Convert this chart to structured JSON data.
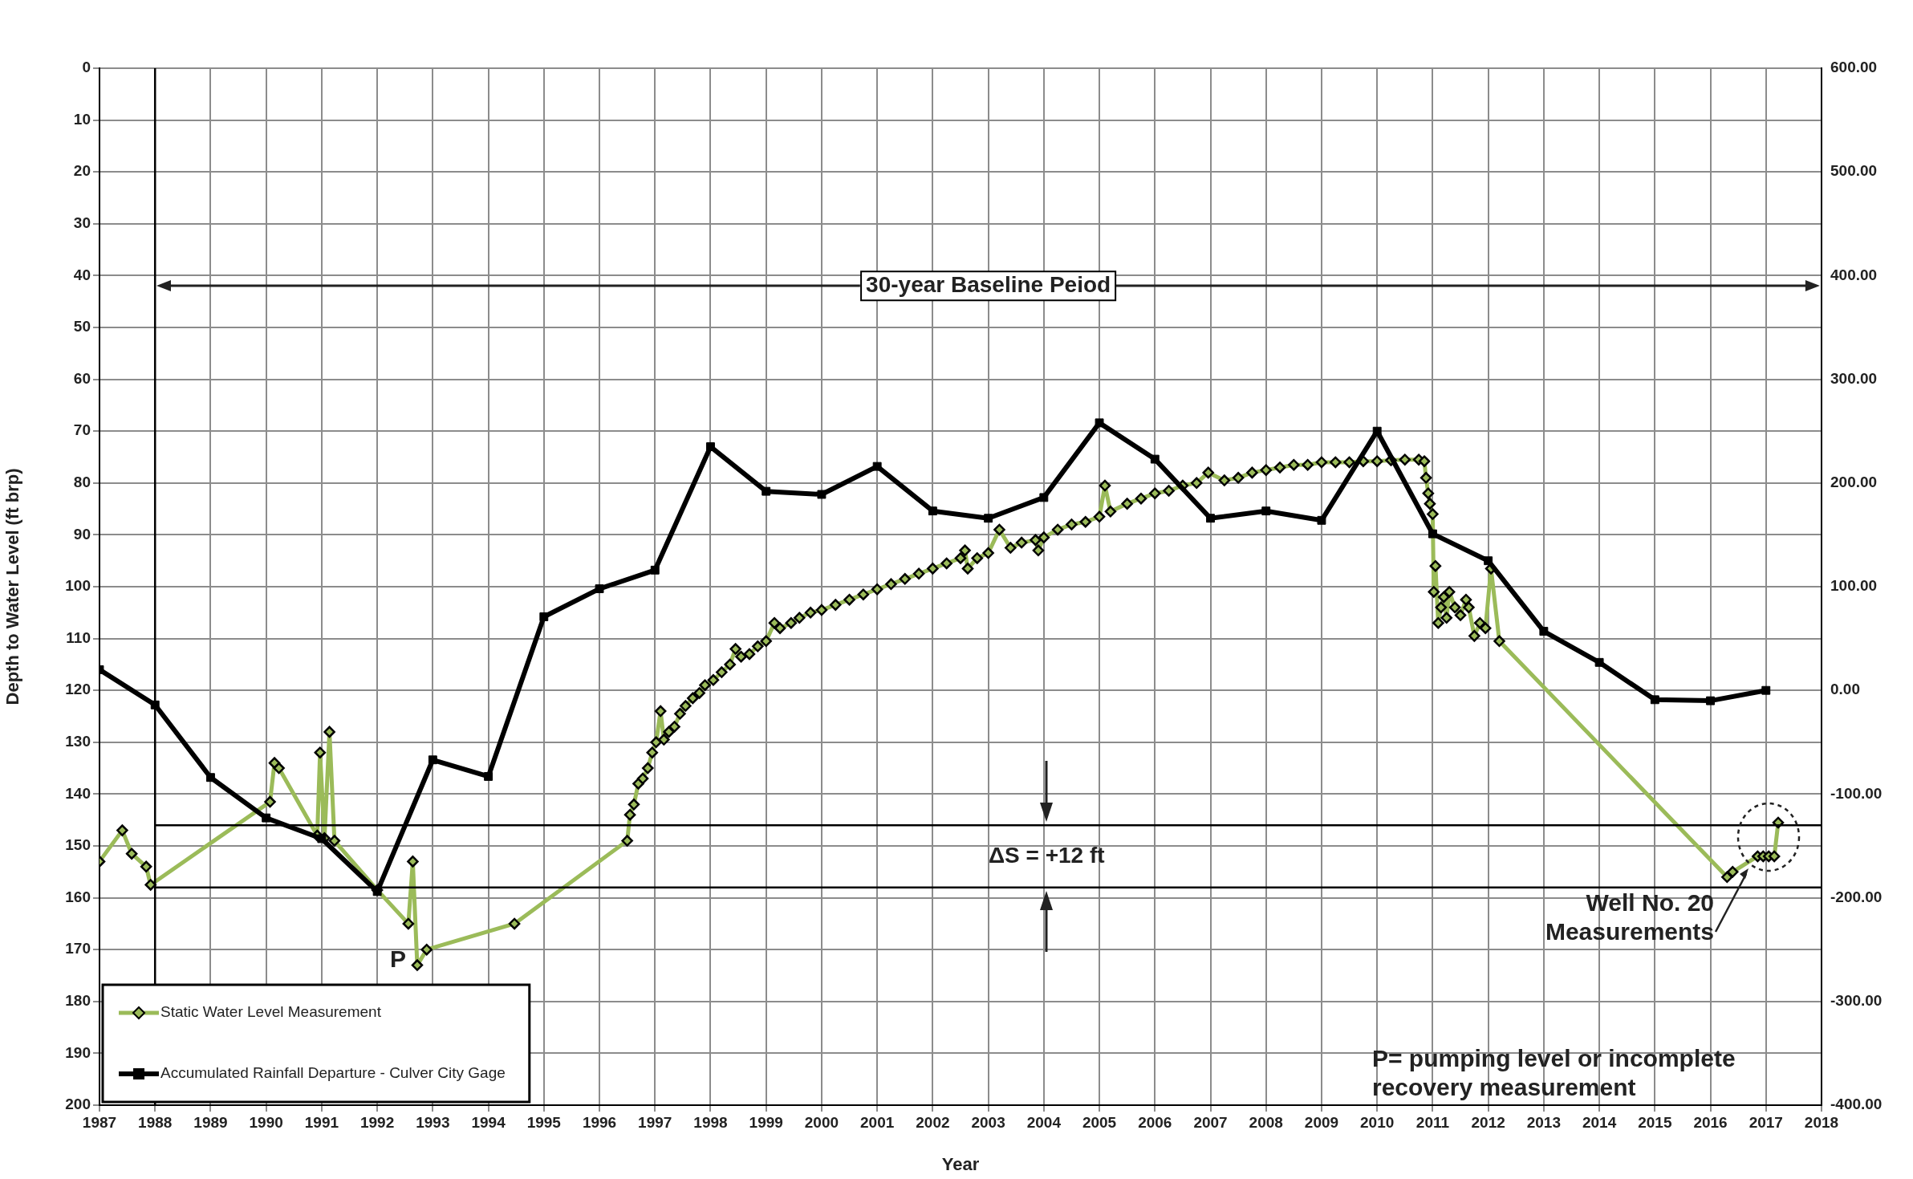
{
  "chart_data": {
    "type": "line",
    "xlabel": "Year",
    "ylabel": "Depth to Water Level (ft brp)",
    "xlim": [
      1987,
      2018
    ],
    "xticks": [
      1987,
      1988,
      1989,
      1990,
      1991,
      1992,
      1993,
      1994,
      1995,
      1996,
      1997,
      1998,
      1999,
      2000,
      2001,
      2002,
      2003,
      2004,
      2005,
      2006,
      2007,
      2008,
      2009,
      2010,
      2011,
      2012,
      2013,
      2014,
      2015,
      2016,
      2017,
      2018
    ],
    "ylim": [
      200,
      0
    ],
    "yticks": [
      0,
      10,
      20,
      30,
      40,
      50,
      60,
      70,
      80,
      90,
      100,
      110,
      120,
      130,
      140,
      150,
      160,
      170,
      180,
      190,
      200
    ],
    "y2lim": [
      -400,
      600
    ],
    "y2ticks": [
      {
        "value": 600,
        "label": "600.00"
      },
      {
        "value": 500,
        "label": "500.00"
      },
      {
        "value": 400,
        "label": "400.00"
      },
      {
        "value": 300,
        "label": "300.00"
      },
      {
        "value": 200,
        "label": "200.00"
      },
      {
        "value": 100,
        "label": "100.00"
      },
      {
        "value": 0,
        "label": "0.00"
      },
      {
        "value": -100,
        "label": "-100.00"
      },
      {
        "value": -200,
        "label": "-200.00"
      },
      {
        "value": -300,
        "label": "-300.00"
      },
      {
        "value": -400,
        "label": "-400.00"
      }
    ],
    "grid": true,
    "legend": "bottom left",
    "line_style": "solid",
    "series": [
      {
        "name": "Static Water Level Measurement",
        "color": "#9bbb59",
        "marker": "diamond",
        "x": [
          1987.0,
          1987.41,
          1987.58,
          1987.84,
          1987.92,
          1990.07,
          1990.15,
          1990.23,
          1990.92,
          1990.97,
          1991.05,
          1991.14,
          1991.23,
          1992.0,
          1992.56,
          1992.64,
          1992.72,
          1992.89,
          1994.47,
          1996.5,
          1996.55,
          1996.62,
          1996.7,
          1996.78,
          1996.87,
          1996.95,
          1997.02,
          1997.1,
          1997.16,
          1997.25,
          1997.35,
          1997.45,
          1997.55,
          1997.68,
          1997.8,
          1997.9,
          1998.05,
          1998.2,
          1998.35,
          1998.45,
          1998.55,
          1998.7,
          1998.85,
          1999.0,
          1999.15,
          1999.25,
          1999.45,
          1999.6,
          1999.8,
          2000.0,
          2000.25,
          2000.5,
          2000.75,
          2001.0,
          2001.25,
          2001.5,
          2001.75,
          2002.0,
          2002.25,
          2002.5,
          2002.58,
          2002.63,
          2002.8,
          2003.0,
          2003.2,
          2003.4,
          2003.6,
          2003.85,
          2003.9,
          2004.0,
          2004.25,
          2004.5,
          2004.75,
          2005.0,
          2005.1,
          2005.2,
          2005.5,
          2005.75,
          2006.0,
          2006.25,
          2006.5,
          2006.75,
          2006.96,
          2007.25,
          2007.5,
          2007.75,
          2008.0,
          2008.25,
          2008.5,
          2008.75,
          2009.0,
          2009.25,
          2009.5,
          2009.75,
          2010.0,
          2010.25,
          2010.5,
          2010.75,
          2010.85,
          2010.88,
          2010.92,
          2010.95,
          2011.0,
          2011.02,
          2011.05,
          2011.1,
          2011.15,
          2011.2,
          2011.25,
          2011.3,
          2011.4,
          2011.5,
          2011.6,
          2011.65,
          2011.75,
          2011.85,
          2011.95,
          2012.05,
          2012.2,
          2016.3,
          2016.4,
          2016.85,
          2016.95,
          2017.05,
          2017.15,
          2017.22
        ],
        "values": [
          153,
          147,
          151.5,
          154,
          157.5,
          141.5,
          134,
          135,
          148,
          132,
          148.5,
          128,
          149,
          158.5,
          165,
          153,
          173,
          170,
          165,
          149,
          144,
          142,
          138,
          137,
          135,
          132,
          130,
          124,
          129.5,
          128,
          127,
          124.5,
          123,
          121.5,
          120.5,
          119,
          118,
          116.5,
          115,
          112,
          113.5,
          113,
          111.5,
          110.5,
          107,
          108,
          107,
          106,
          105,
          104.5,
          103.5,
          102.5,
          101.5,
          100.5,
          99.5,
          98.5,
          97.5,
          96.5,
          95.5,
          94.5,
          93,
          96.5,
          94.5,
          93.5,
          89,
          92.5,
          91.5,
          91,
          93,
          90.5,
          89,
          88,
          87.5,
          86.5,
          80.5,
          85.5,
          84,
          83,
          82,
          81.5,
          80.5,
          80,
          78,
          79.5,
          79,
          78,
          77.5,
          77,
          76.5,
          76.5,
          76,
          76,
          76,
          75.8,
          75.8,
          75.6,
          75.5,
          75.5,
          75.8,
          79,
          82,
          84,
          86,
          101,
          96,
          107,
          104,
          102,
          106,
          101,
          104,
          105.5,
          102.5,
          104,
          109.5,
          107,
          108,
          96.5,
          110.5,
          156,
          155,
          152,
          152,
          152,
          152,
          145.5
        ]
      },
      {
        "name": "Accumulated Rainfall Departure - Culver City Gage",
        "color": "#000000",
        "marker": "square",
        "axis": "y2",
        "x": [
          1987,
          1988,
          1989,
          1990,
          1991,
          1992,
          1993,
          1994,
          1995,
          1996,
          1997,
          1998,
          1999,
          2000,
          2001,
          2002,
          2003,
          2004,
          2005,
          2006,
          2007,
          2008,
          2009,
          2010,
          2011,
          2012,
          2013,
          2014,
          2015,
          2016,
          2017
        ],
        "values": [
          20,
          -14,
          -84,
          -123,
          -143,
          -194,
          -67,
          -83,
          71,
          98,
          116,
          235,
          192,
          189,
          216,
          173,
          166,
          186,
          258,
          223,
          166,
          173,
          164,
          250,
          151,
          125,
          57,
          27,
          -9,
          -10,
          0
        ]
      }
    ],
    "ref_lines": [
      {
        "axis": "x",
        "value": 1988,
        "color": "#000000"
      },
      {
        "axis": "y",
        "value": 146,
        "color": "#000000"
      },
      {
        "axis": "y",
        "value": 158,
        "color": "#000000"
      }
    ],
    "annotations": [
      "30-year Baseline Peiod",
      "ΔS = +12 ft",
      {
        "text": "P",
        "x": 1992.72,
        "y": 173
      },
      "Well No. 20\nMeasurements",
      "P= pumping level or incomplete\nrecovery measurement"
    ]
  }
}
